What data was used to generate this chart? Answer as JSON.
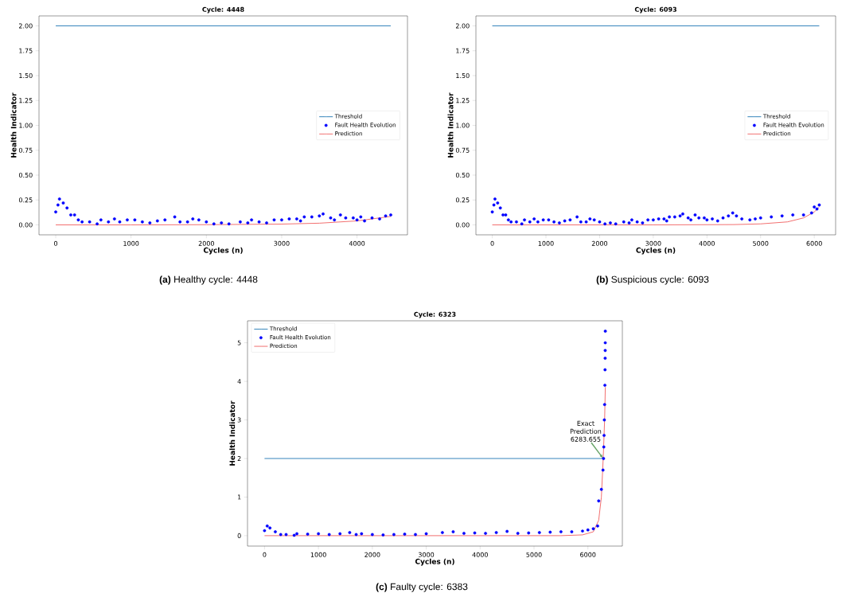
{
  "chart_data": [
    {
      "type": "line",
      "title": "Cycle: 4448",
      "xlabel": "Cycles (n)",
      "ylabel": "Health Indicator",
      "legend": "right",
      "xlim": [
        -222,
        4670
      ],
      "ylim": [
        -0.1,
        2.1
      ],
      "xticks": [
        0,
        1000,
        2000,
        3000,
        4000
      ],
      "yticks": [
        {
          "value": 0,
          "label": "0.00"
        },
        {
          "value": 0.25,
          "label": "0.25"
        },
        {
          "value": 0.5,
          "label": "0.50"
        },
        {
          "value": 0.75,
          "label": "0.75"
        },
        {
          "value": 1,
          "label": "1.00"
        },
        {
          "value": 1.25,
          "label": "1.25"
        },
        {
          "value": 1.5,
          "label": "1.50"
        },
        {
          "value": 1.75,
          "label": "1.75"
        },
        {
          "value": 2,
          "label": "2.00"
        }
      ],
      "series": [
        {
          "name": "Threshold",
          "color": "#1f77b4",
          "x": [
            0,
            4448
          ],
          "values": [
            2,
            2
          ]
        },
        {
          "name": "Fault Health Evolution",
          "type": "scatter",
          "marker": "circle",
          "color": "#0000ff",
          "x": [
            0,
            30,
            50,
            100,
            150,
            200,
            250,
            300,
            350,
            450,
            550,
            600,
            700,
            780,
            850,
            950,
            1050,
            1150,
            1250,
            1350,
            1450,
            1580,
            1650,
            1750,
            1820,
            1900,
            2000,
            2100,
            2200,
            2300,
            2450,
            2550,
            2600,
            2700,
            2800,
            2900,
            3000,
            3100,
            3200,
            3250,
            3300,
            3400,
            3500,
            3550,
            3650,
            3700,
            3780,
            3850,
            3950,
            4000,
            4050,
            4100,
            4200,
            4300,
            4380,
            4448
          ],
          "values": [
            0.13,
            0.2,
            0.26,
            0.22,
            0.17,
            0.1,
            0.1,
            0.05,
            0.03,
            0.03,
            0.01,
            0.05,
            0.03,
            0.06,
            0.03,
            0.05,
            0.05,
            0.03,
            0.02,
            0.04,
            0.05,
            0.08,
            0.03,
            0.03,
            0.06,
            0.05,
            0.03,
            0.01,
            0.02,
            0.01,
            0.03,
            0.02,
            0.05,
            0.03,
            0.02,
            0.05,
            0.05,
            0.06,
            0.06,
            0.04,
            0.08,
            0.08,
            0.09,
            0.11,
            0.07,
            0.05,
            0.1,
            0.07,
            0.07,
            0.05,
            0.08,
            0.04,
            0.07,
            0.06,
            0.09,
            0.1
          ]
        },
        {
          "name": "Prediction",
          "color": "#f06060",
          "x": [
            0,
            1000,
            2000,
            3000,
            3500,
            4000,
            4448
          ],
          "values": [
            0,
            0,
            0.002,
            0.008,
            0.017,
            0.04,
            0.085
          ]
        }
      ],
      "annotations": [
        "**(a)** Healthy cycle: 4448"
      ]
    },
    {
      "type": "line",
      "title": "Cycle: 6093",
      "xlabel": "Cycles (n)",
      "ylabel": "Health Indicator",
      "legend": "right",
      "xlim": [
        -305,
        6398
      ],
      "ylim": [
        -0.1,
        2.1
      ],
      "xticks": [
        0,
        1000,
        2000,
        3000,
        4000,
        5000,
        6000
      ],
      "yticks": [
        {
          "value": 0,
          "label": "0.00"
        },
        {
          "value": 0.25,
          "label": "0.25"
        },
        {
          "value": 0.5,
          "label": "0.50"
        },
        {
          "value": 0.75,
          "label": "0.75"
        },
        {
          "value": 1,
          "label": "1.00"
        },
        {
          "value": 1.25,
          "label": "1.25"
        },
        {
          "value": 1.5,
          "label": "1.50"
        },
        {
          "value": 1.75,
          "label": "1.75"
        },
        {
          "value": 2,
          "label": "2.00"
        }
      ],
      "series": [
        {
          "name": "Threshold",
          "color": "#1f77b4",
          "x": [
            0,
            6093
          ],
          "values": [
            2,
            2
          ]
        },
        {
          "name": "Fault Health Evolution",
          "type": "scatter",
          "marker": "circle",
          "color": "#0000ff",
          "x": [
            0,
            30,
            50,
            100,
            150,
            200,
            250,
            300,
            350,
            450,
            550,
            600,
            700,
            780,
            850,
            950,
            1050,
            1150,
            1250,
            1350,
            1450,
            1580,
            1650,
            1750,
            1820,
            1900,
            2000,
            2100,
            2200,
            2300,
            2450,
            2550,
            2600,
            2700,
            2800,
            2900,
            3000,
            3100,
            3200,
            3250,
            3300,
            3400,
            3500,
            3550,
            3650,
            3700,
            3780,
            3850,
            3950,
            4000,
            4100,
            4200,
            4300,
            4400,
            4480,
            4550,
            4650,
            4800,
            4900,
            5000,
            5200,
            5400,
            5600,
            5800,
            5950,
            6000,
            6050,
            6093
          ],
          "values": [
            0.13,
            0.2,
            0.26,
            0.22,
            0.17,
            0.1,
            0.1,
            0.05,
            0.03,
            0.03,
            0.01,
            0.05,
            0.03,
            0.06,
            0.03,
            0.05,
            0.05,
            0.03,
            0.02,
            0.04,
            0.05,
            0.08,
            0.03,
            0.03,
            0.06,
            0.05,
            0.03,
            0.01,
            0.02,
            0.01,
            0.03,
            0.02,
            0.05,
            0.03,
            0.02,
            0.05,
            0.05,
            0.06,
            0.06,
            0.04,
            0.08,
            0.08,
            0.09,
            0.11,
            0.07,
            0.05,
            0.1,
            0.07,
            0.07,
            0.05,
            0.06,
            0.04,
            0.07,
            0.09,
            0.12,
            0.09,
            0.06,
            0.05,
            0.06,
            0.07,
            0.08,
            0.09,
            0.1,
            0.1,
            0.12,
            0.18,
            0.16,
            0.2
          ]
        },
        {
          "name": "Prediction",
          "color": "#f06060",
          "x": [
            0,
            3000,
            4500,
            5000,
            5500,
            5800,
            6000,
            6093
          ],
          "values": [
            0,
            0,
            0.003,
            0.01,
            0.03,
            0.07,
            0.13,
            0.18
          ]
        }
      ],
      "annotations": [
        "**(b)** Suspicious cycle: 6093"
      ]
    },
    {
      "type": "line",
      "title": "Cycle: 6323",
      "xlabel": "Cycles (n)",
      "ylabel": "Health Indicator",
      "legend": "top left",
      "xlim": [
        -316,
        6639
      ],
      "ylim": [
        -0.27,
        5.57
      ],
      "xticks": [
        0,
        1000,
        2000,
        3000,
        4000,
        5000,
        6000
      ],
      "yticks": [
        0,
        1,
        2,
        3,
        4,
        5
      ],
      "series": [
        {
          "name": "Threshold",
          "color": "#1f77b4",
          "x": [
            0,
            6283.655
          ],
          "values": [
            2,
            2
          ]
        },
        {
          "name": "Fault Health Evolution",
          "type": "scatter",
          "marker": "circle",
          "color": "#0000ff",
          "x": [
            0,
            50,
            100,
            200,
            300,
            400,
            550,
            600,
            800,
            1000,
            1200,
            1400,
            1580,
            1700,
            1800,
            2000,
            2200,
            2400,
            2600,
            2800,
            3000,
            3300,
            3500,
            3700,
            3900,
            4100,
            4300,
            4500,
            4700,
            4900,
            5100,
            5300,
            5500,
            5700,
            5900,
            6000,
            6100,
            6180,
            6200,
            6250,
            6280,
            6290,
            6295,
            6300,
            6305,
            6310,
            6315,
            6318,
            6320,
            6321,
            6322,
            6323
          ],
          "values": [
            0.13,
            0.25,
            0.2,
            0.1,
            0.03,
            0.03,
            0.01,
            0.05,
            0.04,
            0.05,
            0.03,
            0.05,
            0.08,
            0.03,
            0.05,
            0.03,
            0.02,
            0.03,
            0.04,
            0.03,
            0.05,
            0.08,
            0.1,
            0.06,
            0.07,
            0.06,
            0.08,
            0.11,
            0.06,
            0.07,
            0.08,
            0.09,
            0.1,
            0.1,
            0.12,
            0.15,
            0.18,
            0.25,
            0.9,
            1.2,
            1.7,
            2.0,
            2.3,
            2.6,
            3.0,
            3.4,
            3.9,
            4.3,
            4.6,
            4.8,
            5.0,
            5.3
          ]
        },
        {
          "name": "Prediction",
          "color": "#f06060",
          "x": [
            0,
            5500,
            5900,
            6100,
            6200,
            6250,
            6283.655,
            6310,
            6323
          ],
          "values": [
            0,
            0,
            0.02,
            0.1,
            0.4,
            1.0,
            2.0,
            3.0,
            3.85
          ]
        }
      ],
      "annotations": [
        {
          "text": "Exact Prediction 6283.655",
          "x": 6283.655,
          "y": 2
        },
        "**(c)** Faulty cycle: 6383"
      ]
    }
  ]
}
